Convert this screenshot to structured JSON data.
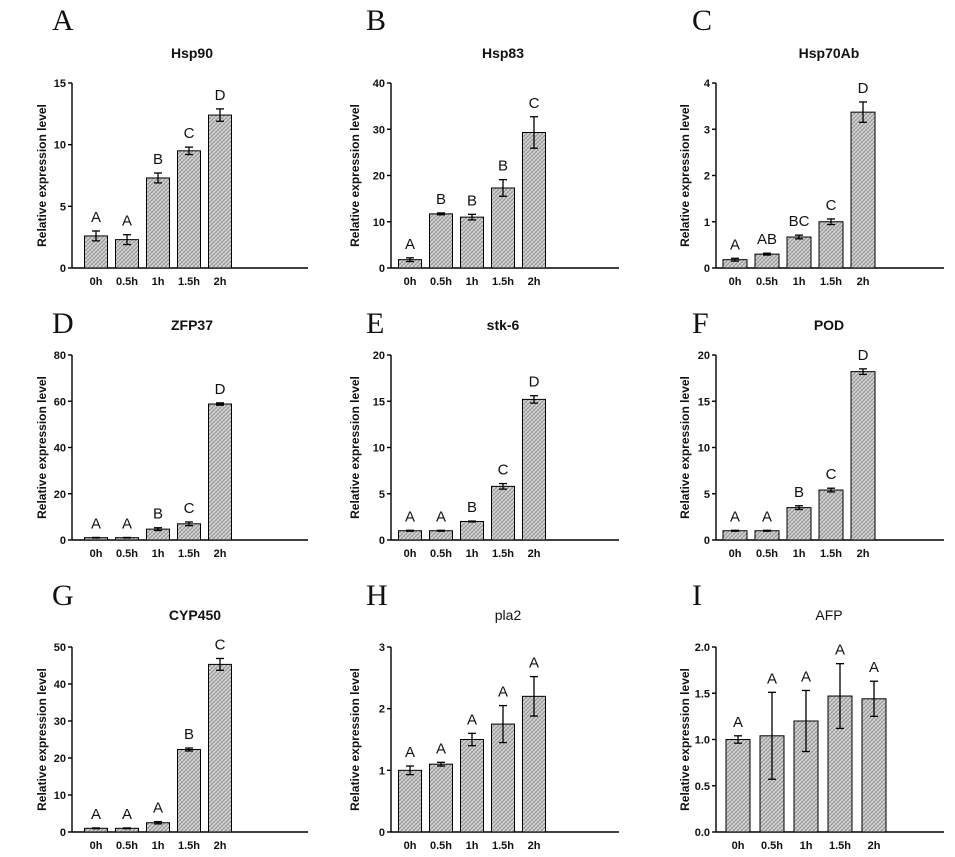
{
  "figure": {
    "panel_fill": "#d6d6d6",
    "hatch_color": "#8a8a8a"
  },
  "chart_data": [
    {
      "panel": "A",
      "type": "bar",
      "title": "Hsp90",
      "title_weight": "bold",
      "ylabel": "Relative expression level",
      "xlabel": "",
      "categories": [
        "0h",
        "0.5h",
        "1h",
        "1.5h",
        "2h"
      ],
      "values": [
        2.6,
        2.3,
        7.3,
        9.5,
        12.4
      ],
      "errors": [
        0.4,
        0.4,
        0.4,
        0.3,
        0.5
      ],
      "significance": [
        "A",
        "A",
        "B",
        "C",
        "D"
      ],
      "ylim": [
        0,
        15
      ],
      "yticks": [
        0,
        5,
        10,
        15
      ],
      "ytick_labels": [
        "0",
        "5",
        "10",
        "15"
      ]
    },
    {
      "panel": "B",
      "type": "bar",
      "title": "Hsp83",
      "title_weight": "bold",
      "ylabel": "Relative expression level",
      "xlabel": "",
      "categories": [
        "0h",
        "0.5h",
        "1h",
        "1.5h",
        "2h"
      ],
      "values": [
        1.8,
        11.7,
        11.0,
        17.3,
        29.3
      ],
      "errors": [
        0.4,
        0.2,
        0.6,
        1.8,
        3.4
      ],
      "significance": [
        "A",
        "B",
        "B",
        "B",
        "C"
      ],
      "ylim": [
        0,
        40
      ],
      "yticks": [
        0,
        10,
        20,
        30,
        40
      ],
      "ytick_labels": [
        "0",
        "10",
        "20",
        "30",
        "40"
      ]
    },
    {
      "panel": "C",
      "type": "bar",
      "title": "Hsp70Ab",
      "title_weight": "bold",
      "ylabel": "Relative expression level",
      "xlabel": "",
      "categories": [
        "0h",
        "0.5h",
        "1h",
        "1.5h",
        "2h"
      ],
      "values": [
        0.18,
        0.3,
        0.67,
        1.0,
        3.37
      ],
      "errors": [
        0.03,
        0.02,
        0.04,
        0.06,
        0.22
      ],
      "significance": [
        "A",
        "AB",
        "BC",
        "C",
        "D"
      ],
      "ylim": [
        0,
        4
      ],
      "yticks": [
        0,
        1,
        2,
        3,
        4
      ],
      "ytick_labels": [
        "0",
        "1",
        "2",
        "3",
        "4"
      ]
    },
    {
      "panel": "D",
      "type": "bar",
      "title": "ZFP37",
      "title_weight": "bold",
      "ylabel": "Relative expression level",
      "xlabel": "",
      "categories": [
        "0h",
        "0.5h",
        "1h",
        "1.5h",
        "2h"
      ],
      "values": [
        1.0,
        1.0,
        4.7,
        7.0,
        58.8
      ],
      "errors": [
        0.1,
        0.1,
        0.6,
        0.8,
        0.5
      ],
      "significance": [
        "A",
        "A",
        "B",
        "C",
        "D"
      ],
      "ylim": [
        0,
        80
      ],
      "yticks": [
        0,
        20,
        40,
        60,
        80
      ],
      "ytick_labels": [
        "0",
        "20",
        "40",
        "60",
        "80"
      ]
    },
    {
      "panel": "E",
      "type": "bar",
      "title": "stk-6",
      "title_weight": "bold",
      "ylabel": "Relative expression level",
      "xlabel": "",
      "categories": [
        "0h",
        "0.5h",
        "1h",
        "1.5h",
        "2h"
      ],
      "values": [
        1.0,
        1.0,
        2.0,
        5.8,
        15.2
      ],
      "errors": [
        0.05,
        0.05,
        0.05,
        0.3,
        0.4
      ],
      "significance": [
        "A",
        "A",
        "B",
        "C",
        "D"
      ],
      "ylim": [
        0,
        20
      ],
      "yticks": [
        0,
        5,
        10,
        15,
        20
      ],
      "ytick_labels": [
        "0",
        "5",
        "10",
        "15",
        "20"
      ]
    },
    {
      "panel": "F",
      "type": "bar",
      "title": "POD",
      "title_weight": "bold",
      "ylabel": "Relative expression level",
      "xlabel": "",
      "categories": [
        "0h",
        "0.5h",
        "1h",
        "1.5h",
        "2h"
      ],
      "values": [
        1.0,
        1.0,
        3.5,
        5.4,
        18.2
      ],
      "errors": [
        0.05,
        0.05,
        0.2,
        0.2,
        0.3
      ],
      "significance": [
        "A",
        "A",
        "B",
        "C",
        "D"
      ],
      "ylim": [
        0,
        20
      ],
      "yticks": [
        0,
        5,
        10,
        15,
        20
      ],
      "ytick_labels": [
        "0",
        "5",
        "10",
        "15",
        "20"
      ]
    },
    {
      "panel": "G",
      "type": "bar",
      "title": "CYP450",
      "title_weight": "bold",
      "ylabel": "Relative expression level",
      "xlabel": "",
      "categories": [
        "0h",
        "0.5h",
        "1h",
        "1.5h",
        "2h"
      ],
      "values": [
        1.0,
        1.0,
        2.5,
        22.3,
        45.3
      ],
      "errors": [
        0.1,
        0.1,
        0.3,
        0.4,
        1.6
      ],
      "significance": [
        "A",
        "A",
        "A",
        "B",
        "C"
      ],
      "ylim": [
        0,
        50
      ],
      "yticks": [
        0,
        10,
        20,
        30,
        40,
        50
      ],
      "ytick_labels": [
        "0",
        "10",
        "20",
        "30",
        "40",
        "50"
      ]
    },
    {
      "panel": "H",
      "type": "bar",
      "title": "pla2",
      "title_weight": "normal",
      "ylabel": "Relative expression level",
      "xlabel": "",
      "categories": [
        "0h",
        "0.5h",
        "1h",
        "1.5h",
        "2h"
      ],
      "values": [
        1.0,
        1.1,
        1.5,
        1.75,
        2.2
      ],
      "errors": [
        0.07,
        0.03,
        0.1,
        0.3,
        0.32
      ],
      "significance": [
        "A",
        "A",
        "A",
        "A",
        "A"
      ],
      "ylim": [
        0,
        3
      ],
      "yticks": [
        0,
        1,
        2,
        3
      ],
      "ytick_labels": [
        "0",
        "1",
        "2",
        "3"
      ]
    },
    {
      "panel": "I",
      "type": "bar",
      "title": "AFP",
      "title_weight": "normal",
      "ylabel": "Relative expression level",
      "xlabel": "",
      "categories": [
        "0h",
        "0.5h",
        "1h",
        "1.5h",
        "2h"
      ],
      "values": [
        1.0,
        1.04,
        1.2,
        1.47,
        1.44
      ],
      "errors": [
        0.04,
        0.47,
        0.33,
        0.35,
        0.19
      ],
      "significance": [
        "A",
        "A",
        "A",
        "A",
        "A"
      ],
      "ylim": [
        0,
        2.0
      ],
      "yticks": [
        0,
        0.5,
        1.0,
        1.5,
        2.0
      ],
      "ytick_labels": [
        "0.0",
        "0.5",
        "1.0",
        "1.5",
        "2.0"
      ]
    }
  ]
}
